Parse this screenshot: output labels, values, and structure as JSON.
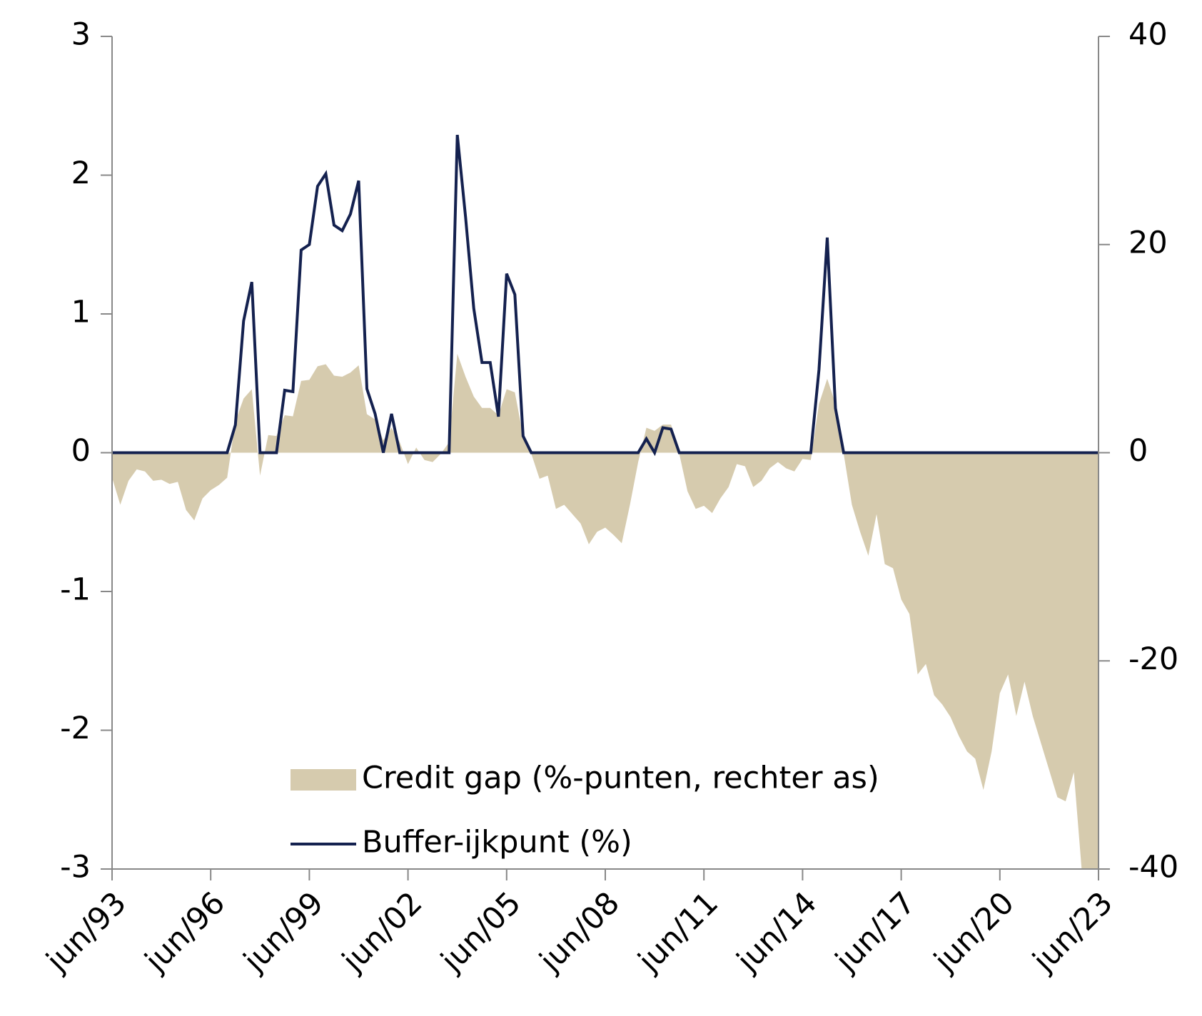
{
  "chart_data": {
    "type": "line",
    "categories": [
      "jun/93",
      null,
      null,
      null,
      null,
      null,
      null,
      null,
      null,
      null,
      null,
      null,
      "jun/96",
      null,
      null,
      null,
      null,
      null,
      null,
      null,
      null,
      null,
      null,
      null,
      "jun/99",
      null,
      null,
      null,
      null,
      null,
      null,
      null,
      null,
      null,
      null,
      null,
      "jun/02",
      null,
      null,
      null,
      null,
      null,
      null,
      null,
      null,
      null,
      null,
      null,
      "jun/05",
      null,
      null,
      null,
      null,
      null,
      null,
      null,
      null,
      null,
      null,
      null,
      "jun/08",
      null,
      null,
      null,
      null,
      null,
      null,
      null,
      null,
      null,
      null,
      null,
      "jun/11",
      null,
      null,
      null,
      null,
      null,
      null,
      null,
      null,
      null,
      null,
      null,
      "jun/14",
      null,
      null,
      null,
      null,
      null,
      null,
      null,
      null,
      null,
      null,
      null,
      "jun/17",
      null,
      null,
      null,
      null,
      null,
      null,
      null,
      null,
      null,
      null,
      null,
      "jun/20",
      null,
      null,
      null,
      null,
      null,
      null,
      null,
      null,
      null,
      null,
      null,
      "jun/23"
    ],
    "series": [
      {
        "name": "Credit gap (%-punten, rechter as)",
        "type": "area",
        "axis": "y2",
        "color": "#d6cbae",
        "values": [
          -2.4,
          -5,
          -2.7,
          -1.6,
          -1.8,
          -2.7,
          -2.6,
          -3,
          -2.8,
          -5.5,
          -6.5,
          -4.4,
          -3.6,
          -3.1,
          -2.4,
          3,
          5.2,
          6.1,
          -2.2,
          1.7,
          1.6,
          3.6,
          3.5,
          6.9,
          7,
          8.3,
          8.5,
          7.4,
          7.3,
          7.7,
          8.4,
          3.7,
          3.2,
          1.2,
          2.4,
          1,
          -1.1,
          0.5,
          -0.7,
          -0.9,
          -0.1,
          1,
          9.5,
          7.3,
          5.4,
          4.3,
          4.3,
          3.6,
          6.1,
          5.8,
          1.6,
          -0.1,
          -2.5,
          -2.2,
          -5.4,
          -5,
          -5.9,
          -6.8,
          -8.8,
          -7.6,
          -7.2,
          -7.9,
          -8.7,
          -5,
          -0.9,
          2.4,
          2.1,
          2.7,
          2.7,
          -0.1,
          -3.7,
          -5.4,
          -5.1,
          -5.8,
          -4.4,
          -3.3,
          -1.1,
          -1.3,
          -3.3,
          -2.7,
          -1.5,
          -0.9,
          -1.5,
          -1.8,
          -0.6,
          -0.7,
          4.7,
          7.1,
          4.7,
          -0.1,
          -5,
          -7.6,
          -9.9,
          -5.9,
          -10.7,
          -11.1,
          -14.1,
          -15.5,
          -21.3,
          -20.3,
          -23.3,
          -24.2,
          -25.4,
          -27.2,
          -28.7,
          -29.4,
          -32.4,
          -28.7,
          -23.1,
          -21.3,
          -25.3,
          -22,
          -25.3,
          -27.9,
          -30.5,
          -33.1,
          -33.5,
          -30.7,
          -40.5,
          -41,
          -41
        ]
      },
      {
        "name": "Buffer-ijkpunt (%)",
        "type": "line",
        "axis": "y",
        "color": "#14214f",
        "values": [
          0,
          0,
          0,
          0,
          0,
          0,
          0,
          0,
          0,
          0,
          0,
          0,
          0,
          0,
          0,
          0.2,
          0.95,
          1.23,
          0,
          0,
          0,
          0.45,
          0.44,
          1.46,
          1.5,
          1.92,
          2.01,
          1.64,
          1.6,
          1.72,
          1.96,
          0.46,
          0.28,
          0,
          0.28,
          0,
          0,
          0,
          0,
          0,
          0,
          0,
          2.29,
          1.7,
          1.04,
          0.65,
          0.65,
          0.26,
          1.29,
          1.14,
          0.12,
          0,
          0,
          0,
          0,
          0,
          0,
          0,
          0,
          0,
          0,
          0,
          0,
          0,
          0,
          0.1,
          0,
          0.18,
          0.17,
          0,
          0,
          0,
          0,
          0,
          0,
          0,
          0,
          0,
          0,
          0,
          0,
          0,
          0,
          0,
          0,
          0,
          0.6,
          1.55,
          0.32,
          0,
          0,
          0,
          0,
          0,
          0,
          0,
          0,
          0,
          0,
          0,
          0,
          0,
          0,
          0,
          0,
          0,
          0,
          0,
          0,
          0,
          0,
          0,
          0,
          0,
          0,
          0,
          0,
          0,
          0,
          0,
          0
        ]
      }
    ],
    "ylim": [
      -3,
      3
    ],
    "yticks": [
      -3,
      -2,
      -1,
      0,
      1,
      2,
      3
    ],
    "y2lim": [
      -40,
      40
    ],
    "y2ticks": [
      -40,
      -20,
      0,
      20,
      40
    ]
  }
}
